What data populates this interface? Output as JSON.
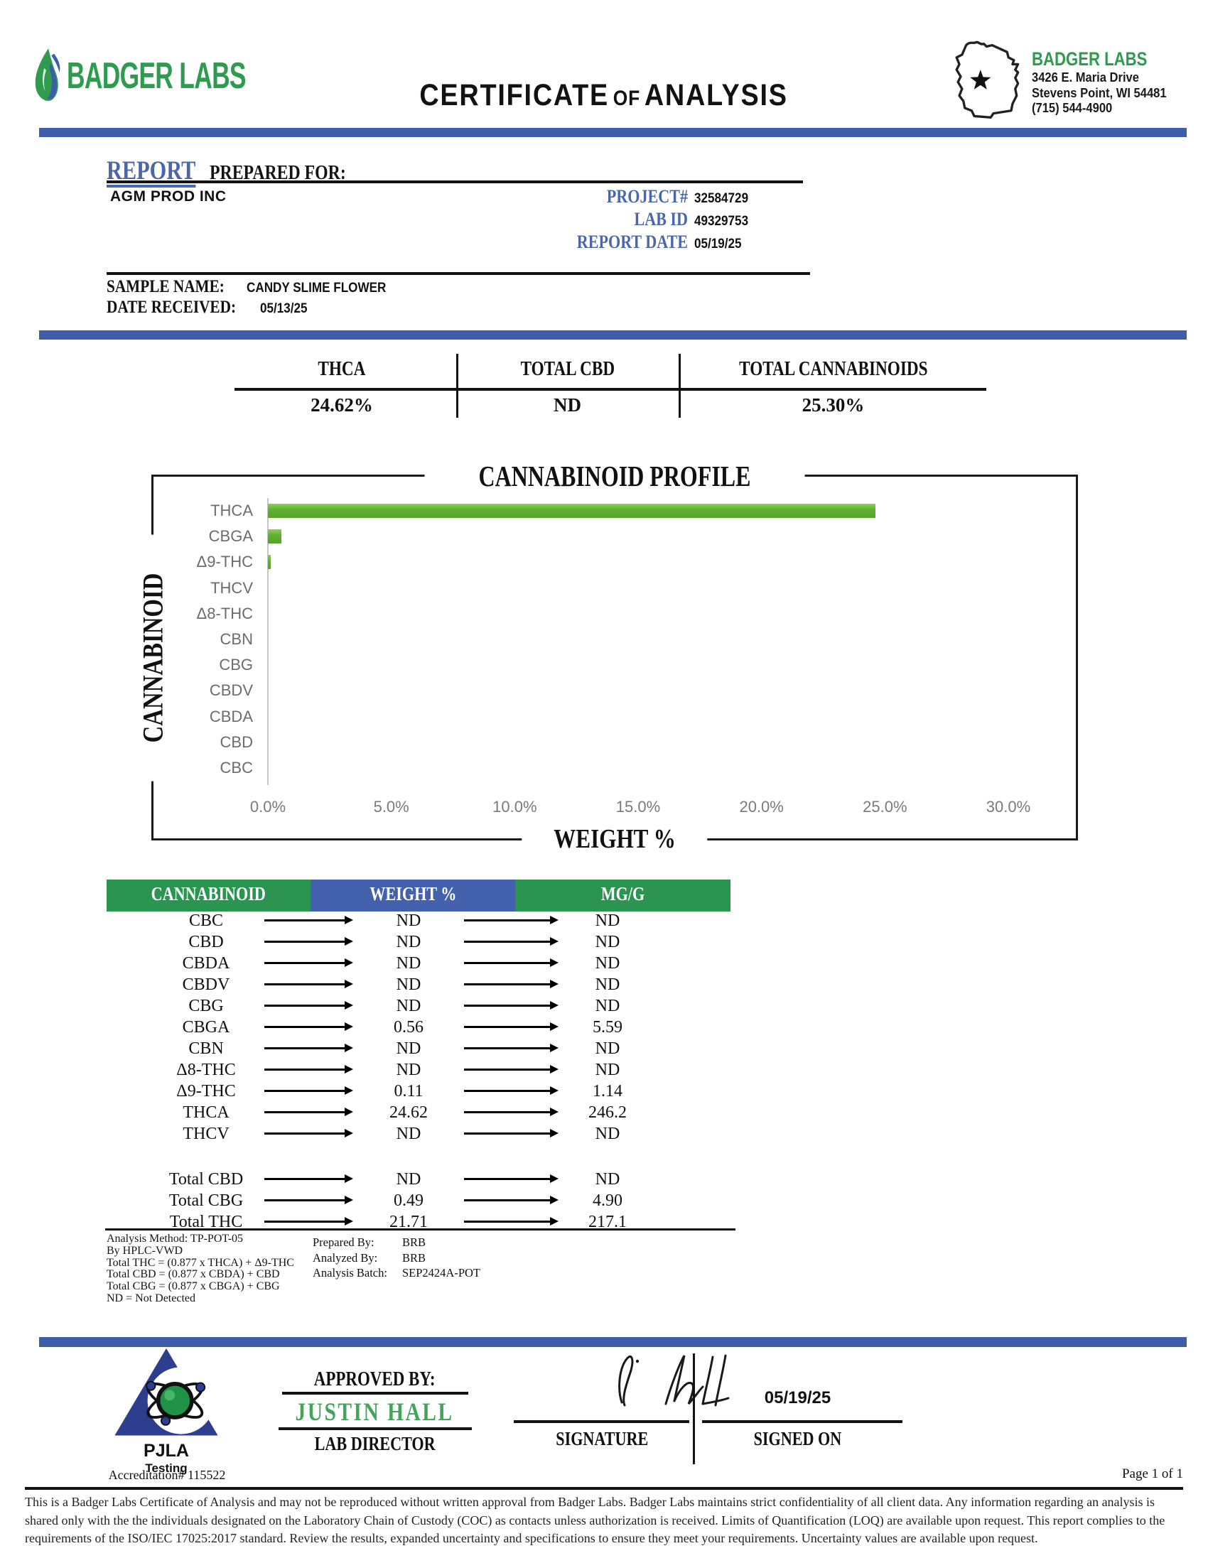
{
  "colors": {
    "brand_green": "#2e9b4e",
    "table_green": "#2a9450",
    "table_blue": "#4461ad",
    "divider_blue": "#3e5ea9",
    "accent_text_blue": "#4a67ae",
    "chart_bar_green": "#62b133",
    "pjla_blue": "#2e3e8f",
    "approver_green": "#44a45c"
  },
  "header": {
    "brand": "BADGER LABS",
    "title_word1": "CERTIFICATE",
    "title_of": "OF",
    "title_word2": "ANALYSIS",
    "lab_name": "BADGER LABS",
    "address1": "3426 E. Maria Drive",
    "address2": "Stevens Point, WI 54481",
    "phone": "(715) 544-4900"
  },
  "report": {
    "heading_accent": "REPORT",
    "heading_rest": "PREPARED FOR:",
    "client": "AGM PROD INC",
    "meta": [
      {
        "label": "PROJECT#",
        "value": "32584729"
      },
      {
        "label": "LAB ID",
        "value": "49329753"
      },
      {
        "label": "REPORT DATE",
        "value": "05/19/25"
      }
    ],
    "sample_label": "SAMPLE NAME:",
    "sample_value": "CANDY SLIME FLOWER",
    "received_label": "DATE RECEIVED:",
    "received_value": "05/13/25"
  },
  "summary": {
    "columns": [
      {
        "label": "THCA",
        "value": "24.62%"
      },
      {
        "label": "TOTAL CBD",
        "value": "ND"
      },
      {
        "label": "TOTAL CANNABINOIDS",
        "value": "25.30%"
      }
    ]
  },
  "chart_data": {
    "type": "bar",
    "orientation": "horizontal",
    "title": "CANNABINOID PROFILE",
    "xlabel": "WEIGHT %",
    "ylabel": "CANNABINOID",
    "categories": [
      "THCA",
      "CBGA",
      "Δ9-THC",
      "THCV",
      "Δ8-THC",
      "CBN",
      "CBG",
      "CBDV",
      "CBDA",
      "CBD",
      "CBC"
    ],
    "values": [
      24.62,
      0.56,
      0.11,
      0,
      0,
      0,
      0,
      0,
      0,
      0,
      0
    ],
    "xlim": [
      0,
      30
    ],
    "xticks": [
      "0.0%",
      "5.0%",
      "10.0%",
      "15.0%",
      "20.0%",
      "25.0%",
      "30.0%"
    ],
    "grid": false,
    "legend": "none"
  },
  "table": {
    "headers": [
      "CANNABINOID",
      "WEIGHT %",
      "MG/G"
    ],
    "rows": [
      {
        "name": "CBC",
        "weight": "ND",
        "mgg": "ND"
      },
      {
        "name": "CBD",
        "weight": "ND",
        "mgg": "ND"
      },
      {
        "name": "CBDA",
        "weight": "ND",
        "mgg": "ND"
      },
      {
        "name": "CBDV",
        "weight": "ND",
        "mgg": "ND"
      },
      {
        "name": "CBG",
        "weight": "ND",
        "mgg": "ND"
      },
      {
        "name": "CBGA",
        "weight": "0.56",
        "mgg": "5.59"
      },
      {
        "name": "CBN",
        "weight": "ND",
        "mgg": "ND"
      },
      {
        "name": "Δ8-THC",
        "weight": "ND",
        "mgg": "ND"
      },
      {
        "name": "Δ9-THC",
        "weight": "0.11",
        "mgg": "1.14"
      },
      {
        "name": "THCA",
        "weight": "24.62",
        "mgg": "246.2"
      },
      {
        "name": "THCV",
        "weight": "ND",
        "mgg": "ND"
      }
    ],
    "totals": [
      {
        "name": "Total CBD",
        "weight": "ND",
        "mgg": "ND"
      },
      {
        "name": "Total CBG",
        "weight": "0.49",
        "mgg": "4.90"
      },
      {
        "name": "Total THC",
        "weight": "21.71",
        "mgg": "217.1"
      }
    ]
  },
  "footnotes": {
    "left_lines": [
      "Analysis Method: TP-POT-05",
      "By HPLC-VWD",
      "Total THC = (0.877 x  THCA) + Δ9-THC",
      "Total CBD = (0.877 x  CBDA) + CBD",
      "Total CBG = (0.877 x  CBGA) + CBG",
      "ND = Not Detected"
    ],
    "right": [
      {
        "label": "Prepared By:",
        "value": "BRB"
      },
      {
        "label": "Analyzed By:",
        "value": "BRB"
      },
      {
        "label": "Analysis Batch:",
        "value": "SEP2424A-POT"
      }
    ]
  },
  "approval": {
    "approved_by_label": "APPROVED BY:",
    "name": "JUSTIN HALL",
    "role": "LAB DIRECTOR",
    "signature_label": "SIGNATURE",
    "date": "05/19/25",
    "signed_on_label": "SIGNED ON"
  },
  "accreditation": {
    "org": "PJLA",
    "program": "Testing",
    "number": "Accreditation# 115522"
  },
  "page_info": {
    "page": "Page 1 of 1"
  },
  "disclaimer": {
    "text": "This is a Badger Labs Certificate of Analysis and may not be reproduced without written approval from Badger Labs. Badger Labs maintains strict confidentiality of all client data. Any information regarding an analysis is shared only with the the individuals designated on the Laboratory Chain of Custody (COC) as contacts unless authorization is received. Limits of Quantification (LOQ) are available upon request. This report complies to the requirements of the ISO/IEC 17025:2017 standard. Review the results, expanded uncertainty and specifications to ensure they meet your requirements. Uncertainty values are available upon request."
  }
}
